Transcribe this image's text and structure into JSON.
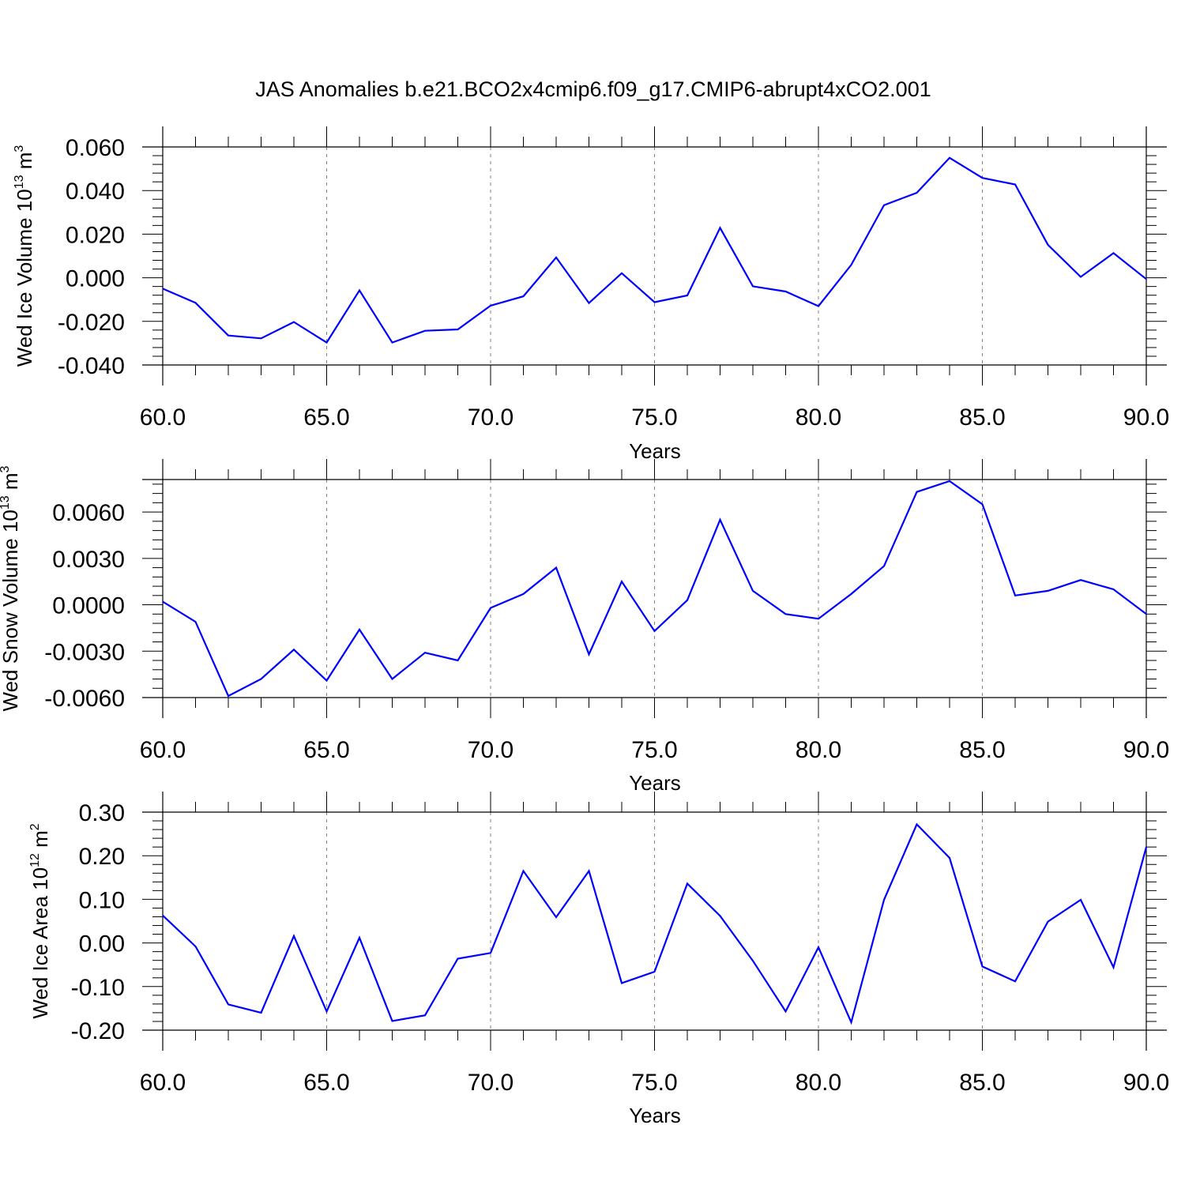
{
  "title": "JAS Anomalies b.e21.BCO2x4cmip6.f09_g17.CMIP6-abrupt4xCO2.001",
  "colors": {
    "series": "#0000ff",
    "axis": "#000000",
    "grid": "#808080"
  },
  "chart_data": [
    {
      "type": "line",
      "ylabel_main": "Wed Ice Volume 10",
      "ylabel_exp": "13",
      "ylabel_unit": " m",
      "ylabel_unit_exp": "3",
      "xlabel": "Years",
      "xlim": [
        60,
        90
      ],
      "ylim": [
        -0.04,
        0.06
      ],
      "xticks": [
        "60.0",
        "65.0",
        "70.0",
        "75.0",
        "80.0",
        "85.0",
        "90.0"
      ],
      "yticks": [
        "0.060",
        "0.040",
        "0.020",
        "0.000",
        "-0.020",
        "-0.040"
      ],
      "ytick_values": [
        0.06,
        0.04,
        0.02,
        0.0,
        -0.02,
        -0.04
      ],
      "grid": "dashed vertical at major x ticks",
      "series": [
        {
          "x": [
            60,
            61,
            62,
            63,
            64,
            65,
            66,
            67,
            68,
            69,
            70,
            71,
            72,
            73,
            74,
            75,
            76,
            77,
            78,
            79,
            80,
            81,
            82,
            83,
            84,
            85,
            86,
            87,
            88,
            89,
            90
          ],
          "values": [
            -0.005,
            -0.0115,
            -0.0265,
            -0.0278,
            -0.0203,
            -0.0297,
            -0.0058,
            -0.0297,
            -0.0243,
            -0.0237,
            -0.0128,
            -0.0085,
            0.0093,
            -0.0116,
            0.0021,
            -0.0112,
            -0.0081,
            0.0229,
            -0.0039,
            -0.0063,
            -0.013,
            0.0059,
            0.0333,
            0.039,
            0.055,
            0.0458,
            0.0428,
            0.0151,
            0.0004,
            0.0113,
            -0.0006
          ]
        }
      ]
    },
    {
      "type": "line",
      "ylabel_main": "Wed Snow Volume 10",
      "ylabel_exp": "13",
      "ylabel_unit": " m",
      "ylabel_unit_exp": "3",
      "xlabel": "Years",
      "xlim": [
        60,
        90
      ],
      "ylim": [
        -0.006,
        0.0081
      ],
      "xticks": [
        "60.0",
        "65.0",
        "70.0",
        "75.0",
        "80.0",
        "85.0",
        "90.0"
      ],
      "yticks": [
        "0.0060",
        "0.0030",
        "0.0000",
        "-0.0030",
        "-0.0060"
      ],
      "ytick_values": [
        0.006,
        0.003,
        0.0,
        -0.003,
        -0.006
      ],
      "grid": "dashed vertical at major x ticks",
      "series": [
        {
          "x": [
            60,
            61,
            62,
            63,
            64,
            65,
            66,
            67,
            68,
            69,
            70,
            71,
            72,
            73,
            74,
            75,
            76,
            77,
            78,
            79,
            80,
            81,
            82,
            83,
            84,
            85,
            86,
            87,
            88,
            89,
            90
          ],
          "values": [
            0.0002,
            -0.0011,
            -0.0059,
            -0.0048,
            -0.0029,
            -0.0049,
            -0.0016,
            -0.0048,
            -0.0031,
            -0.0036,
            -0.0002,
            0.0007,
            0.0024,
            -0.0032,
            0.0015,
            -0.0017,
            0.0003,
            0.0055,
            0.0009,
            -0.0006,
            -0.0009,
            0.0007,
            0.0025,
            0.0073,
            0.008,
            0.0065,
            0.0006,
            0.0009,
            0.0016,
            0.001,
            -0.0006
          ]
        }
      ]
    },
    {
      "type": "line",
      "ylabel_main": "Wed Ice Area 10",
      "ylabel_exp": "12",
      "ylabel_unit": " m",
      "ylabel_unit_exp": "2",
      "xlabel": "Years",
      "xlim": [
        60,
        90
      ],
      "ylim": [
        -0.2,
        0.3
      ],
      "xticks": [
        "60.0",
        "65.0",
        "70.0",
        "75.0",
        "80.0",
        "85.0",
        "90.0"
      ],
      "yticks": [
        "0.30",
        "0.20",
        "0.10",
        "0.00",
        "-0.10",
        "-0.20"
      ],
      "ytick_values": [
        0.3,
        0.2,
        0.1,
        0.0,
        -0.1,
        -0.2
      ],
      "grid": "dashed vertical at major x ticks",
      "series": [
        {
          "x": [
            60,
            61,
            62,
            63,
            64,
            65,
            66,
            67,
            68,
            69,
            70,
            71,
            72,
            73,
            74,
            75,
            76,
            77,
            78,
            79,
            80,
            81,
            82,
            83,
            84,
            85,
            86,
            87,
            88,
            89,
            90
          ],
          "values": [
            0.063,
            -0.008,
            -0.141,
            -0.16,
            0.016,
            -0.157,
            0.012,
            -0.179,
            -0.166,
            -0.036,
            -0.023,
            0.165,
            0.059,
            0.165,
            -0.092,
            -0.066,
            0.136,
            0.062,
            -0.041,
            -0.157,
            -0.01,
            -0.182,
            0.099,
            0.272,
            0.195,
            -0.054,
            -0.088,
            0.049,
            0.099,
            -0.056,
            0.22
          ]
        }
      ]
    }
  ]
}
